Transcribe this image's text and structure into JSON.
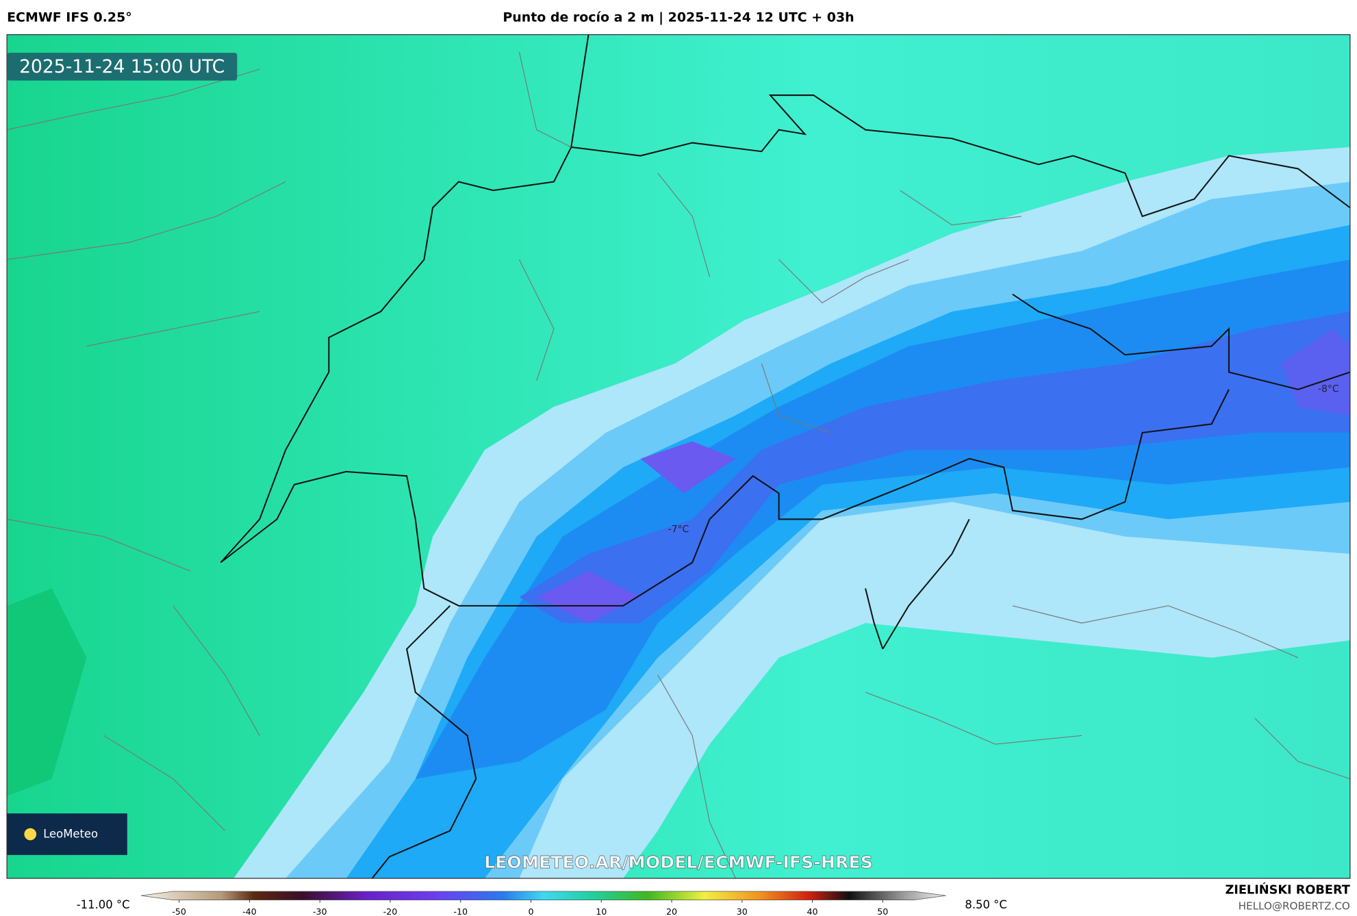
{
  "header": {
    "model": "ECMWF IFS 0.25°",
    "title": "Punto de rocío a 2 m | 2025-11-24 12 UTC + 03h"
  },
  "map": {
    "timestamp": "2025-11-24 15:00 UTC",
    "labels": [
      "-8°C",
      "-7°C"
    ],
    "watermark": "LEOMETEO.AR/MODEL/ECMWF-IFS-HRES",
    "logo": "LeoMeteo"
  },
  "colorbar": {
    "min_label": "-11.00 °C",
    "max_label": "8.50 °C",
    "ticks": [
      -50,
      -40,
      -30,
      -20,
      -10,
      0,
      10,
      20,
      30,
      40,
      50
    ]
  },
  "footer": {
    "author": "ZIELIŃSKI ROBERT",
    "email": "HELLO@ROBERTZ.CO"
  }
}
